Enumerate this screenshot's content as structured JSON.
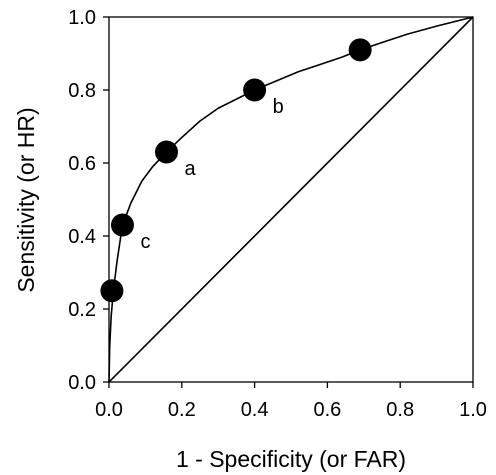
{
  "chart_data": {
    "type": "line",
    "title": "",
    "xlabel": "1 - Specificity (or FAR)",
    "ylabel": "Sensitivity (or HR)",
    "xlim": [
      0,
      1
    ],
    "ylim": [
      0,
      1
    ],
    "xticks": [
      "0.0",
      "0.2",
      "0.4",
      "0.6",
      "0.8",
      "1.0"
    ],
    "yticks": [
      "0.0",
      "0.2",
      "0.4",
      "0.6",
      "0.8",
      "1.0"
    ],
    "grid": false,
    "legend": "none",
    "series": [
      {
        "role": "roc-curve",
        "x": [
          0.0,
          0.002,
          0.006,
          0.012,
          0.022,
          0.037,
          0.06,
          0.09,
          0.12,
          0.158,
          0.2,
          0.25,
          0.3,
          0.35,
          0.4,
          0.46,
          0.52,
          0.58,
          0.64,
          0.69,
          0.75,
          0.82,
          0.9,
          1.0
        ],
        "y": [
          0.0,
          0.1,
          0.18,
          0.25,
          0.33,
          0.43,
          0.49,
          0.55,
          0.59,
          0.63,
          0.67,
          0.715,
          0.75,
          0.775,
          0.8,
          0.825,
          0.85,
          0.87,
          0.89,
          0.91,
          0.93,
          0.953,
          0.975,
          1.0
        ]
      },
      {
        "role": "chance-diagonal",
        "x": [
          0.0,
          1.0
        ],
        "y": [
          0.0,
          1.0
        ]
      }
    ],
    "points": [
      {
        "x": 0.008,
        "y": 0.25,
        "label": ""
      },
      {
        "x": 0.037,
        "y": 0.43,
        "label": "c"
      },
      {
        "x": 0.158,
        "y": 0.63,
        "label": "a"
      },
      {
        "x": 0.4,
        "y": 0.8,
        "label": "b"
      },
      {
        "x": 0.69,
        "y": 0.91,
        "label": ""
      }
    ],
    "colors": {
      "line": "#000000",
      "marker": "#000000"
    }
  }
}
